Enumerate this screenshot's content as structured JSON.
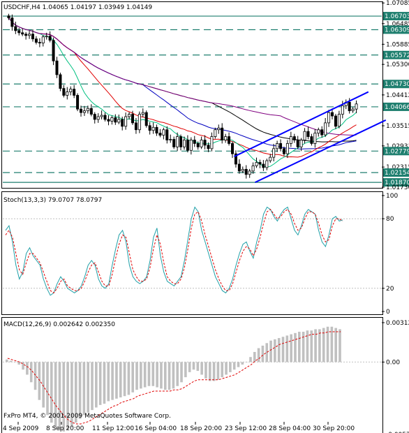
{
  "main_panel": {
    "title": "USDCHF,H4  1.04065 1.04197 1.03949 1.04149",
    "price_axis": [
      "1.07085",
      "1.06703",
      "1.06485",
      "1.06309",
      "1.05885",
      "1.05572",
      "1.05300",
      "1.04730",
      "1.04412",
      "1.04066",
      "1.03515",
      "1.02931",
      "1.02779",
      "1.02315",
      "1.02154",
      "1.01870",
      "1.01730"
    ],
    "highlighted_levels": [
      "1.06703",
      "1.06309",
      "1.05572",
      "1.04730",
      "1.04066",
      "1.02779",
      "1.02154",
      "1.01870"
    ],
    "level_color": "#1f7f6f",
    "current_price_color": "#ffffff"
  },
  "stoch_panel": {
    "title": "Stoch(13,3,3) 79.0707 78.0797",
    "axis": [
      "100",
      "80",
      "20",
      "0"
    ],
    "main_color": "#20a0a8",
    "signal_color": "#e00000"
  },
  "macd_panel": {
    "title": "MACD(12,26,9) 0.002642 0.002350",
    "axis": [
      "0.00312",
      "0.00",
      "-0.00573"
    ],
    "histogram_color": "#c0c0c0",
    "signal_color": "#e00000"
  },
  "time_axis": [
    "4 Sep 2009",
    "8 Sep 20:00",
    "11 Sep 12:00",
    "16 Sep 04:00",
    "18 Sep 20:00",
    "23 Sep 12:00",
    "28 Sep 04:00",
    "30 Sep 20:00"
  ],
  "copyright": "FxPro MT4, © 2001-2009 MetaQuotes Software Corp.",
  "chart_data": [
    {
      "type": "candlestick",
      "title": "USDCHF,H4",
      "ylim": [
        1.0173,
        1.0709
      ],
      "ohlc_close": [
        1.0665,
        1.064,
        1.0628,
        1.0622,
        1.0618,
        1.0614,
        1.0618,
        1.0604,
        1.0594,
        1.0592,
        1.061,
        1.0612,
        1.06,
        1.054,
        1.05,
        1.046,
        1.044,
        1.045,
        1.0458,
        1.044,
        1.04,
        1.039,
        1.0395,
        1.0402,
        1.0385,
        1.037,
        1.0378,
        1.0382,
        1.037,
        1.0365,
        1.0375,
        1.0362,
        1.037,
        1.035,
        1.0378,
        1.0385,
        1.036,
        1.034,
        1.0385,
        1.039,
        1.0352,
        1.0338,
        1.0347,
        1.033,
        1.0324,
        1.034,
        1.031,
        1.0312,
        1.029,
        1.032,
        1.029,
        1.031,
        1.028,
        1.031,
        1.03,
        1.029,
        1.031,
        1.0295,
        1.0285,
        1.032,
        1.034,
        1.0345,
        1.031,
        1.032,
        1.03,
        1.027,
        1.024,
        1.022,
        1.0225,
        1.021,
        1.022,
        1.0235,
        1.0245,
        1.024,
        1.023,
        1.025,
        1.026,
        1.0285,
        1.03,
        1.0285,
        1.027,
        1.03,
        1.032,
        1.031,
        1.029,
        1.031,
        1.0335,
        1.032,
        1.03,
        1.033,
        1.034,
        1.0325,
        1.036,
        1.039,
        1.038,
        1.035,
        1.0385,
        1.041,
        1.042,
        1.0395,
        1.04,
        1.0415
      ],
      "trend_channel": {
        "color": "#0000ff"
      },
      "moving_averages": [
        "#000000",
        "#0000c0",
        "#e00000",
        "#00c080",
        "#800080"
      ]
    },
    {
      "type": "line",
      "title": "Stoch(13,3,3)",
      "ylim": [
        0,
        100
      ],
      "series": [
        {
          "name": "main",
          "values": [
            70,
            74,
            60,
            40,
            28,
            34,
            50,
            55,
            48,
            44,
            40,
            28,
            20,
            14,
            16,
            24,
            30,
            26,
            20,
            18,
            16,
            18,
            22,
            30,
            40,
            44,
            40,
            28,
            22,
            20,
            24,
            40,
            54,
            66,
            70,
            60,
            40,
            30,
            26,
            24,
            26,
            30,
            44,
            64,
            72,
            48,
            34,
            26,
            24,
            22,
            26,
            30,
            44,
            62,
            80,
            90,
            86,
            70,
            60,
            50,
            40,
            30,
            24,
            18,
            16,
            20,
            28,
            40,
            50,
            58,
            60,
            52,
            46,
            60,
            70,
            84,
            90,
            88,
            82,
            78,
            84,
            88,
            90,
            80,
            70,
            66,
            74,
            84,
            88,
            86,
            84,
            70,
            60,
            56,
            66,
            80,
            82,
            78,
            79
          ]
        },
        {
          "name": "signal",
          "values": [
            66,
            70,
            64,
            50,
            36,
            32,
            42,
            50,
            50,
            46,
            42,
            34,
            26,
            18,
            16,
            20,
            26,
            28,
            22,
            20,
            18,
            18,
            20,
            26,
            34,
            40,
            42,
            34,
            26,
            22,
            22,
            32,
            46,
            58,
            66,
            64,
            50,
            36,
            30,
            26,
            26,
            28,
            38,
            54,
            66,
            58,
            42,
            30,
            26,
            24,
            24,
            28,
            38,
            54,
            72,
            84,
            86,
            78,
            66,
            56,
            46,
            36,
            28,
            22,
            18,
            18,
            24,
            34,
            44,
            52,
            56,
            54,
            48,
            54,
            64,
            76,
            86,
            88,
            84,
            80,
            82,
            86,
            88,
            84,
            76,
            70,
            72,
            80,
            86,
            86,
            84,
            76,
            66,
            60,
            62,
            74,
            80,
            80,
            78
          ]
        }
      ]
    },
    {
      "type": "bar",
      "title": "MACD(12,26,9)",
      "ylim": [
        -0.00573,
        0.00312
      ],
      "series": [
        {
          "name": "macd",
          "values": [
            0.0002,
            0.0001,
            0.0,
            -0.0002,
            -0.0006,
            -0.001,
            -0.0016,
            -0.0022,
            -0.003,
            -0.0036,
            -0.0042,
            -0.0048,
            -0.0052,
            -0.0054,
            -0.0055,
            -0.0053,
            -0.0051,
            -0.0048,
            -0.0045,
            -0.0042,
            -0.004,
            -0.0038,
            -0.0036,
            -0.0034,
            -0.0033,
            -0.0031,
            -0.003,
            -0.0029,
            -0.0028,
            -0.0027,
            -0.0026,
            -0.0024,
            -0.0022,
            -0.0021,
            -0.002,
            -0.0019,
            -0.0019,
            -0.002,
            -0.0021,
            -0.0022,
            -0.0022,
            -0.0021,
            -0.0019,
            -0.0016,
            -0.0012,
            -0.0008,
            -0.0006,
            -0.0007,
            -0.001,
            -0.0013,
            -0.0015,
            -0.0015,
            -0.0014,
            -0.0012,
            -0.001,
            -0.0008,
            -0.0006,
            -0.0004,
            -0.0002,
            0.0,
            0.0004,
            0.0008,
            0.0011,
            0.0013,
            0.0015,
            0.0017,
            0.0018,
            0.0019,
            0.002,
            0.0021,
            0.0022,
            0.0023,
            0.0024,
            0.0024,
            0.0025,
            0.0025,
            0.0026,
            0.0026,
            0.0027,
            0.0028,
            0.0028,
            0.0027,
            0.0026
          ]
        },
        {
          "name": "signal",
          "values": [
            0.0003,
            0.0002,
            0.0001,
            0.0,
            -0.0002,
            -0.0004,
            -0.0007,
            -0.0011,
            -0.0015,
            -0.002,
            -0.0025,
            -0.003,
            -0.0035,
            -0.0039,
            -0.0043,
            -0.0046,
            -0.0048,
            -0.0049,
            -0.0049,
            -0.0048,
            -0.0047,
            -0.0045,
            -0.0043,
            -0.0041,
            -0.0039,
            -0.0037,
            -0.0035,
            -0.0034,
            -0.0032,
            -0.0031,
            -0.003,
            -0.0029,
            -0.0027,
            -0.0026,
            -0.0025,
            -0.0024,
            -0.0023,
            -0.0023,
            -0.0023,
            -0.0023,
            -0.0023,
            -0.0022,
            -0.0022,
            -0.0021,
            -0.0019,
            -0.0017,
            -0.0015,
            -0.0014,
            -0.0014,
            -0.0014,
            -0.0014,
            -0.0014,
            -0.0014,
            -0.0013,
            -0.0012,
            -0.0011,
            -0.001,
            -0.0008,
            -0.0006,
            -0.0004,
            -0.0002,
            0.0001,
            0.0003,
            0.0006,
            0.0008,
            0.001,
            0.0012,
            0.0014,
            0.0015,
            0.0016,
            0.0017,
            0.0018,
            0.0019,
            0.002,
            0.0021,
            0.0022,
            0.0022,
            0.0023,
            0.0023,
            0.0024,
            0.0024,
            0.0024,
            0.0024
          ]
        }
      ]
    }
  ]
}
